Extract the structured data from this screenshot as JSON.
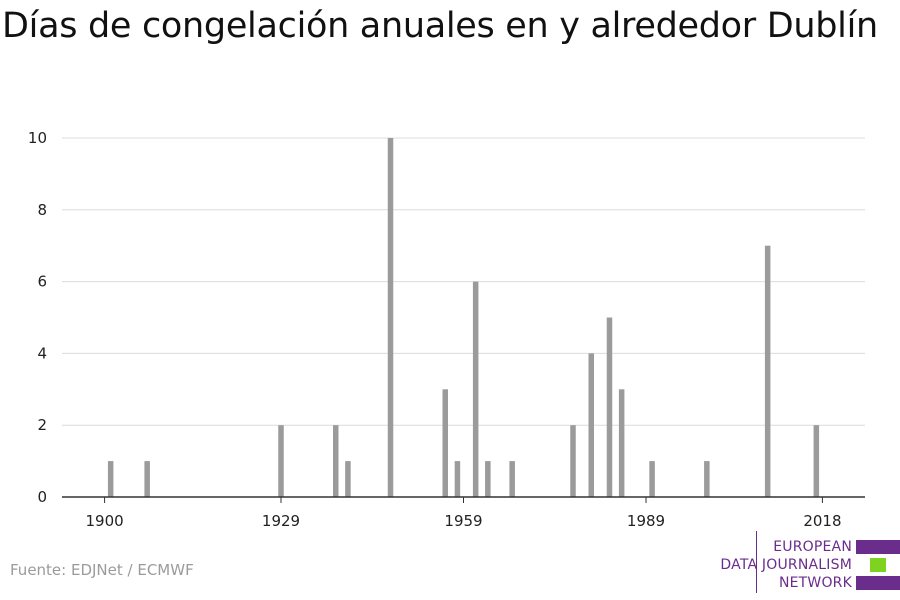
{
  "title": "Días de congelación anuales en y alrededor Dublín",
  "source": "Fuente: EDJNet / ECMWF",
  "logo": {
    "lines": [
      "EUROPEAN",
      "DATA JOURNALISM",
      "NETWORK"
    ],
    "colors": [
      "#6a2d8c",
      "#7ed321",
      "#6a2d8c"
    ]
  },
  "chart_data": {
    "type": "bar",
    "title": "Días de congelación anuales en y alrededor Dublín",
    "xlabel": "",
    "ylabel": "",
    "xlim": [
      1893,
      2025
    ],
    "ylim": [
      0,
      10
    ],
    "yticks": [
      0,
      2,
      4,
      6,
      8,
      10
    ],
    "xticks": [
      1900,
      1929,
      1959,
      1989,
      2018
    ],
    "grid": true,
    "bar_color": "#9b9b9b",
    "years": [
      1901,
      1907,
      1929,
      1938,
      1940,
      1947,
      1956,
      1958,
      1961,
      1963,
      1967,
      1977,
      1980,
      1983,
      1985,
      1990,
      1999,
      2009,
      2017
    ],
    "values": [
      1,
      1,
      2,
      2,
      1,
      10,
      3,
      1,
      6,
      1,
      1,
      2,
      4,
      5,
      3,
      1,
      1,
      7,
      2
    ]
  }
}
